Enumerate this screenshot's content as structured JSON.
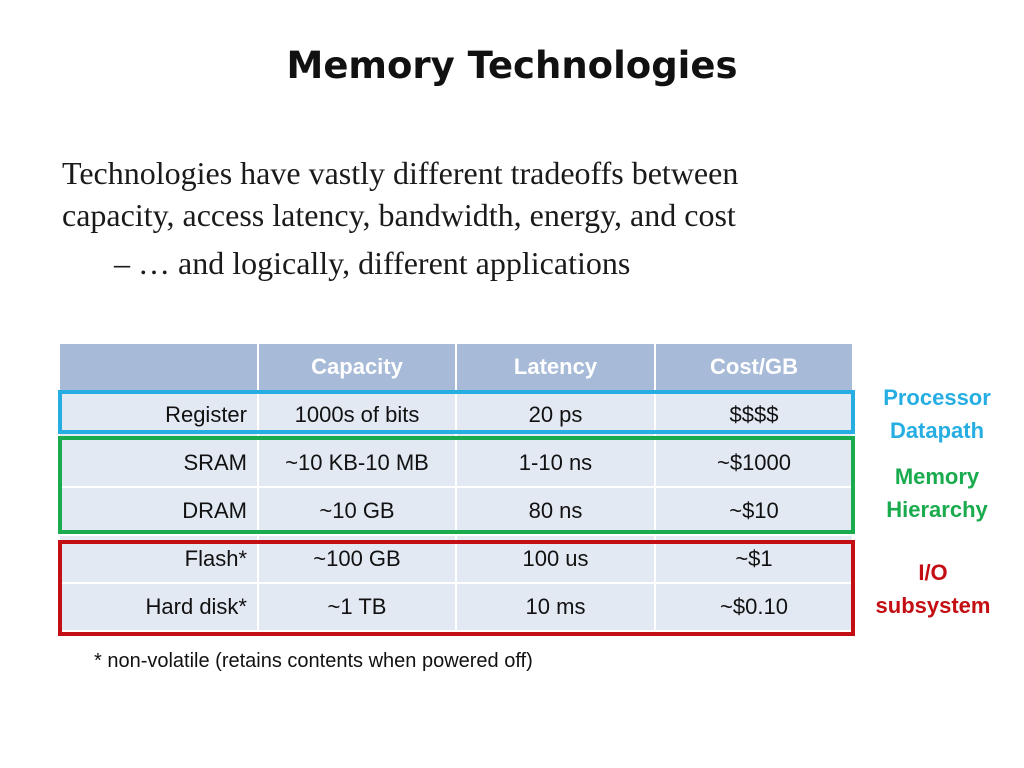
{
  "slide": {
    "title": "Memory Technologies",
    "body_line1": "Technologies have vastly different tradeoffs between",
    "body_line2": "capacity, access latency, bandwidth, energy, and cost",
    "sub_bullet": "– … and logically, different applications",
    "footnote": "* non-volatile (retains contents when powered off)"
  },
  "table": {
    "headers": [
      "",
      "Capacity",
      "Latency",
      "Cost/GB"
    ],
    "rows": [
      [
        "Register",
        "1000s of bits",
        "20 ps",
        "$$$$"
      ],
      [
        "SRAM",
        "~10 KB-10 MB",
        "1-10 ns",
        "~$1000"
      ],
      [
        "DRAM",
        "~10 GB",
        "80 ns",
        "~$10"
      ],
      [
        "Flash*",
        "~100 GB",
        "100 us",
        "~$1"
      ],
      [
        "Hard disk*",
        "~1 TB",
        "10 ms",
        "~$0.10"
      ]
    ]
  },
  "groups": {
    "processor": {
      "line1": "Processor",
      "line2": "Datapath",
      "color": "#26aee3"
    },
    "memory": {
      "line1": "Memory",
      "line2": "Hierarchy",
      "color": "#1aab4e"
    },
    "io": {
      "line1": "I/O",
      "line2": "subsystem",
      "color": "#c30f14"
    }
  }
}
